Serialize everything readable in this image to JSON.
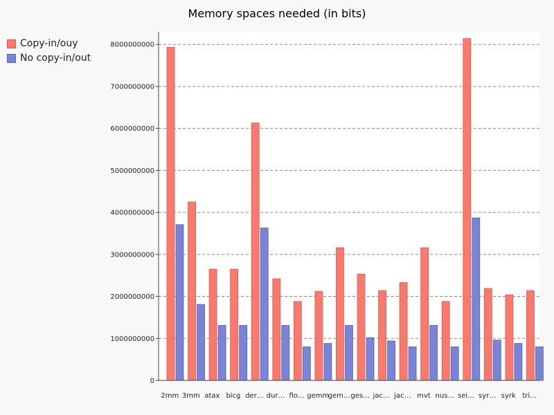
{
  "chart_data": {
    "type": "bar",
    "title": "Memory spaces needed (in bits)",
    "xlabel": "",
    "ylabel": "",
    "ylim": [
      0,
      8300000000
    ],
    "yticks": [
      0,
      1000000000,
      2000000000,
      3000000000,
      4000000000,
      5000000000,
      6000000000,
      7000000000,
      8000000000
    ],
    "ytick_labels": [
      "0",
      "1000000000",
      "2000000000",
      "3000000000",
      "4000000000",
      "5000000000",
      "6000000000",
      "7000000000",
      "8000000000"
    ],
    "grid": true,
    "legend_position": "top-left",
    "categories": [
      "2mm",
      "3mm",
      "atax",
      "bicg",
      "der…",
      "dur…",
      "flo…",
      "gemm",
      "gem…",
      "ges…",
      "jac…",
      "jac…",
      "mvt",
      "nus…",
      "sei…",
      "syr…",
      "syrk",
      "tri…"
    ],
    "series": [
      {
        "name": "Copy-in/ouy",
        "color": "#f87a6e",
        "values": [
          7930000000,
          4250000000,
          2650000000,
          2650000000,
          6130000000,
          2420000000,
          1880000000,
          2120000000,
          3160000000,
          2530000000,
          2140000000,
          2330000000,
          3160000000,
          1880000000,
          8140000000,
          2190000000,
          2040000000,
          2140000000
        ]
      },
      {
        "name": "No copy-in/out",
        "color": "#7a84d6",
        "values": [
          3710000000,
          1810000000,
          1310000000,
          1310000000,
          3630000000,
          1310000000,
          800000000,
          880000000,
          1310000000,
          1020000000,
          940000000,
          800000000,
          1310000000,
          800000000,
          3870000000,
          960000000,
          880000000,
          800000000
        ]
      }
    ]
  }
}
